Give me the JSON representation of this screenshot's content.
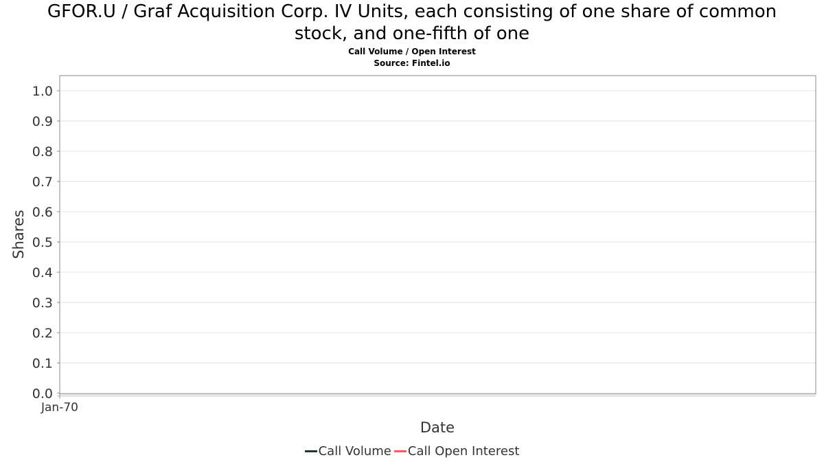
{
  "chart_data": {
    "type": "line",
    "title_lines": [
      "GFOR.U / Graf Acquisition Corp. IV Units, each consisting of one share of common",
      "stock, and one-fifth of one"
    ],
    "subtitle": "Call Volume / Open Interest",
    "source": "Source: Fintel.io",
    "xlabel": "Date",
    "ylabel": "Shares",
    "ylim": [
      0.0,
      1.0
    ],
    "yticks": [
      "0.0",
      "0.1",
      "0.2",
      "0.3",
      "0.4",
      "0.5",
      "0.6",
      "0.7",
      "0.8",
      "0.9",
      "1.0"
    ],
    "xticks": [
      "Jan-70"
    ],
    "grid": true,
    "legend_position": "bottom-center",
    "series": [
      {
        "name": "Call Volume",
        "color": "#1a3a2a",
        "values": []
      },
      {
        "name": "Call Open Interest",
        "color": "#ff5a5a",
        "values": []
      }
    ]
  }
}
